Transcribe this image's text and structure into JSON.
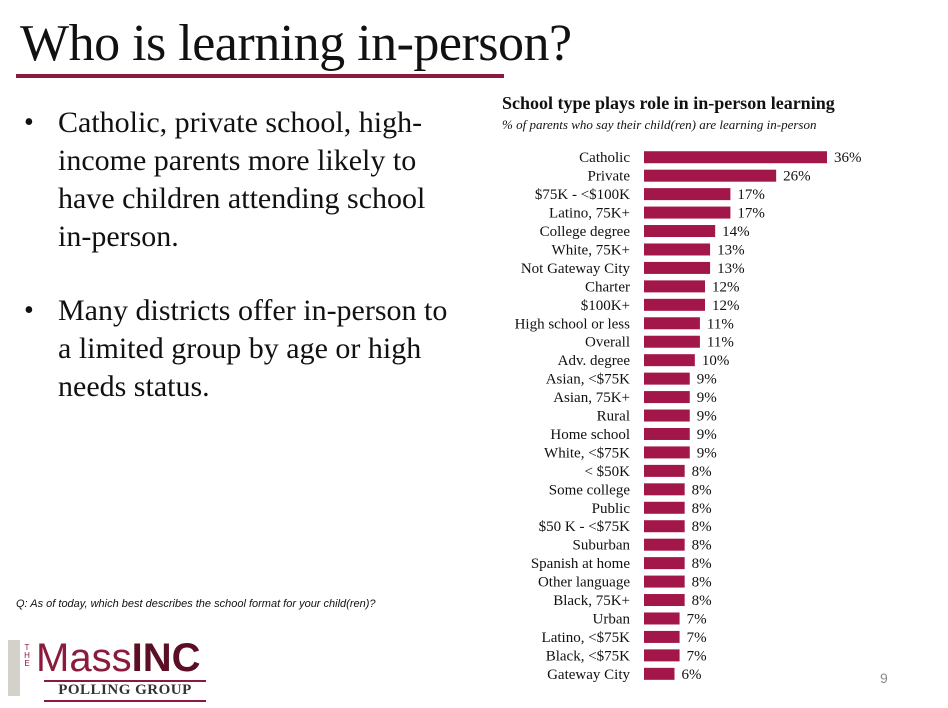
{
  "slide": {
    "title": "Who is learning in-person?",
    "bullets": [
      "Catholic, private school, high-income parents more likely to have children attending school in-person.",
      "Many districts offer in-person to a limited group by age or high needs status."
    ],
    "bullet_glyph": "•",
    "footnote": "Q: As of today, which best describes the school format for your child(ren)?",
    "page_number": "9",
    "logo": {
      "the": "THE",
      "brand_light": "Mass",
      "brand_bold": "INC",
      "tagline": "POLLING GROUP"
    }
  },
  "colors": {
    "accent": "#8b1a3d",
    "bar": "#a3164a"
  },
  "chart_data": {
    "type": "bar",
    "orientation": "horizontal",
    "title": "School type plays role in in-person learning",
    "subtitle": "% of parents who say their child(ren) are learning in-person",
    "value_suffix": "%",
    "categories": [
      "Catholic",
      "Private",
      "$75K - <$100K",
      "Latino, 75K+",
      "College degree",
      "White, 75K+",
      "Not Gateway City",
      "Charter",
      "$100K+",
      "High school or less",
      "Overall",
      "Adv. degree",
      "Asian, <$75K",
      "Asian, 75K+",
      "Rural",
      "Home school",
      "White, <$75K",
      "< $50K",
      "Some college",
      "Public",
      "$50 K - <$75K",
      "Suburban",
      "Spanish at home",
      "Other language",
      "Black, 75K+",
      "Urban",
      "Latino, <$75K",
      "Black, <$75K",
      "Gateway City"
    ],
    "values": [
      36,
      26,
      17,
      17,
      14,
      13,
      13,
      12,
      12,
      11,
      11,
      10,
      9,
      9,
      9,
      9,
      9,
      8,
      8,
      8,
      8,
      8,
      8,
      8,
      8,
      7,
      7,
      7,
      6
    ],
    "xlim": [
      0,
      36
    ],
    "grid": false,
    "legend": "none"
  }
}
